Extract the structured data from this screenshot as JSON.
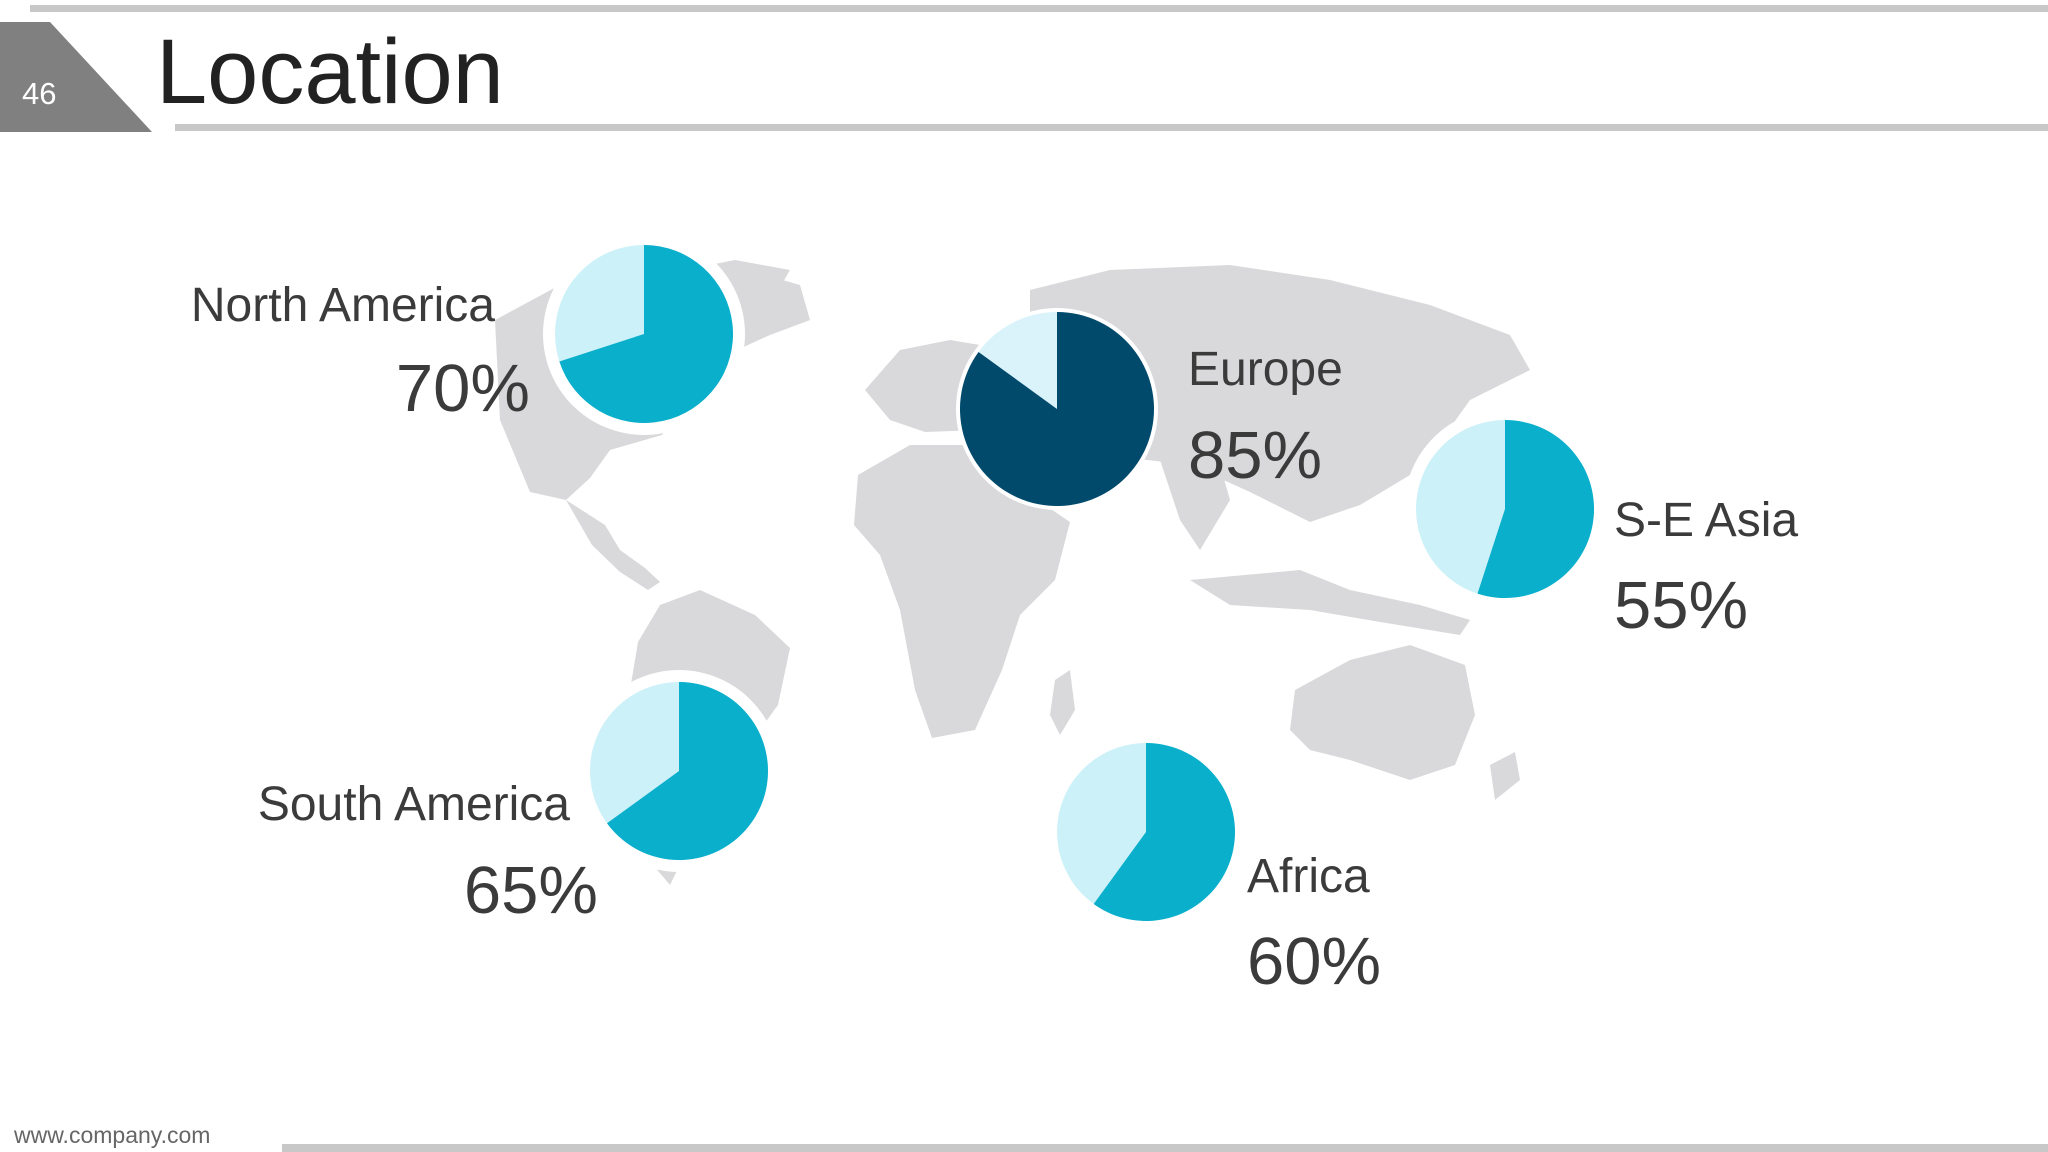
{
  "slide": {
    "number": "46",
    "title": "Location"
  },
  "footer": {
    "url": "www.company.com"
  },
  "colors": {
    "pie_fill": "#0aafcc",
    "pie_rest": "#ccf1f8",
    "pie_highlight": "#024a6b",
    "pie_highlight_rest": "#daf3fa",
    "map": "#d9d9db"
  },
  "regions": [
    {
      "name": "North America",
      "percent_label": "70%",
      "value": 70
    },
    {
      "name": "Europe",
      "percent_label": "85%",
      "value": 85
    },
    {
      "name": "S-E Asia",
      "percent_label": "55%",
      "value": 55
    },
    {
      "name": "South America",
      "percent_label": "65%",
      "value": 65
    },
    {
      "name": "Africa",
      "percent_label": "60%",
      "value": 60
    }
  ]
}
